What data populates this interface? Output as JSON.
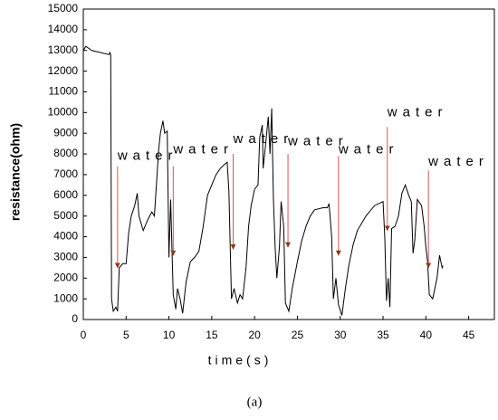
{
  "chart_data": {
    "type": "line",
    "caption": "(a)",
    "x_label": "time(s)",
    "y_label": "resistance(ohm)",
    "xlim": [
      0,
      48
    ],
    "ylim": [
      0,
      15000
    ],
    "xticks": [
      0,
      5,
      10,
      15,
      20,
      25,
      30,
      35,
      40,
      45
    ],
    "yticks": [
      0,
      1000,
      2000,
      3000,
      4000,
      5000,
      6000,
      7000,
      8000,
      9000,
      10000,
      11000,
      12000,
      13000,
      14000,
      15000
    ],
    "grid": false,
    "x": [
      0,
      0.3,
      1,
      2,
      3,
      3.1,
      3.2,
      3.3,
      3.5,
      3.8,
      4.0,
      4.2,
      4.6,
      5,
      5.3,
      5.6,
      6,
      6.3,
      6.5,
      7,
      7.5,
      8,
      8.3,
      8.6,
      8.8,
      9,
      9.3,
      9.5,
      9.8,
      10,
      10.2,
      10.5,
      10.8,
      11,
      11.3,
      11.6,
      12,
      12.5,
      13,
      13.5,
      14,
      14.5,
      15,
      15.5,
      16,
      16.5,
      16.8,
      17,
      17.3,
      17.6,
      18,
      18.3,
      18.6,
      19,
      19.3,
      19.6,
      20,
      20.4,
      20.6,
      20.9,
      21,
      21.3,
      21.6,
      21.8,
      22,
      22.2,
      22.4,
      22.6,
      22.9,
      23.1,
      23.4,
      23.6,
      24,
      24.4,
      25,
      25.5,
      26,
      26.5,
      27,
      28,
      28.5,
      28.7,
      29,
      29.2,
      29.5,
      29.8,
      30.2,
      30.6,
      31,
      31.5,
      32,
      33,
      34,
      35,
      35.2,
      35.4,
      35.6,
      35.8,
      36,
      36.4,
      36.8,
      37.2,
      37.6,
      38,
      38.3,
      38.5,
      38.7,
      39,
      39.5,
      39.8,
      40,
      40.2,
      40.4,
      40.8,
      41.3,
      41.6,
      41.9,
      42
    ],
    "series": [
      {
        "color": "#000000",
        "values": [
          13000,
          13200,
          13000,
          12900,
          12800,
          12900,
          12800,
          1000,
          400,
          600,
          400,
          2500,
          2700,
          2700,
          4200,
          5000,
          5500,
          6100,
          5000,
          4300,
          4800,
          5200,
          5000,
          6900,
          8200,
          9000,
          9600,
          9000,
          9100,
          3000,
          5800,
          1200,
          500,
          1500,
          1000,
          300,
          1800,
          2800,
          3000,
          3300,
          4500,
          6000,
          6500,
          7000,
          7300,
          7500,
          7600,
          6200,
          1000,
          1500,
          800,
          1200,
          1000,
          2500,
          4500,
          5500,
          6300,
          6500,
          8800,
          9400,
          7300,
          8500,
          9800,
          8000,
          10200,
          5800,
          3500,
          2000,
          3500,
          5700,
          4500,
          800,
          400,
          1500,
          2800,
          3800,
          4500,
          5000,
          5300,
          5400,
          5400,
          5600,
          4000,
          1000,
          2000,
          700,
          200,
          1500,
          2600,
          3600,
          4300,
          5000,
          5500,
          5700,
          4000,
          900,
          2000,
          600,
          4400,
          4500,
          5000,
          6100,
          6500,
          6000,
          5700,
          3200,
          3800,
          5800,
          5500,
          4500,
          3500,
          2800,
          1200,
          1000,
          2000,
          3100,
          2500,
          2600
        ]
      }
    ],
    "annotations": [
      {
        "text": "water",
        "x": 4.0,
        "y_start": 7400,
        "y_end": 2500,
        "text_y": 7900
      },
      {
        "text": "water",
        "x": 10.5,
        "y_start": 7400,
        "y_end": 3100,
        "text_y": 8200
      },
      {
        "text": "water",
        "x": 17.5,
        "y_start": 8000,
        "y_end": 3400,
        "text_y": 8700
      },
      {
        "text": "water",
        "x": 23.9,
        "y_start": 8000,
        "y_end": 3500,
        "text_y": 8600
      },
      {
        "text": "water",
        "x": 29.8,
        "y_start": 7900,
        "y_end": 3100,
        "text_y": 8200
      },
      {
        "text": "water",
        "x": 35.5,
        "y_start": 9300,
        "y_end": 4300,
        "text_y": 10000
      },
      {
        "text": "water",
        "x": 40.3,
        "y_start": 7200,
        "y_end": 2500,
        "text_y": 7600
      }
    ]
  }
}
